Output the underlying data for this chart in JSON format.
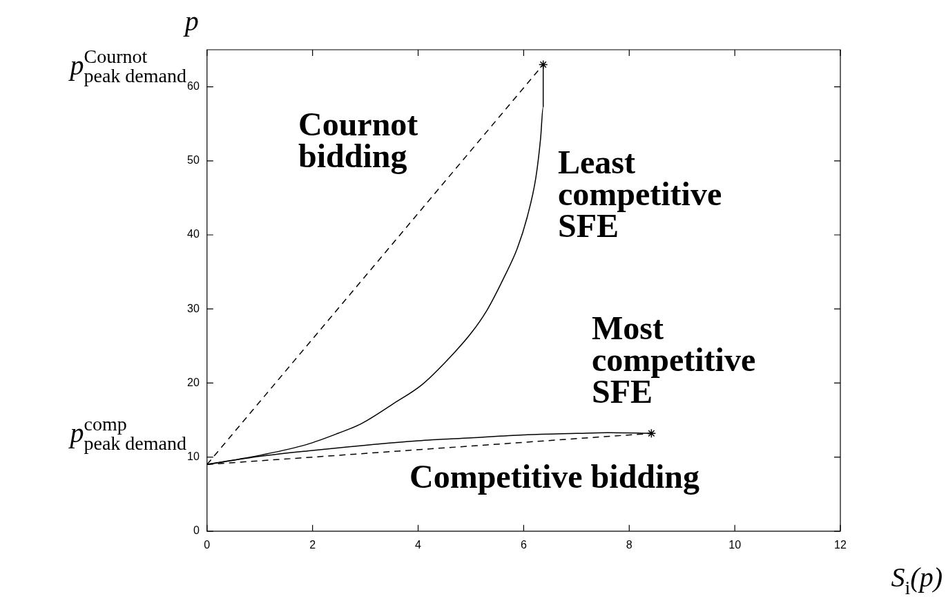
{
  "chart_data": {
    "type": "line",
    "xlabel": "S$_{i}$(p)",
    "ylabel": "p",
    "xlim": [
      0,
      12
    ],
    "ylim": [
      0,
      65
    ],
    "xticks": [
      0,
      2,
      4,
      6,
      8,
      10,
      12
    ],
    "yticks": [
      0,
      10,
      20,
      30,
      40,
      50,
      60
    ],
    "grid": false,
    "legend": false,
    "series": [
      {
        "color": "#000000",
        "line_style": "solid",
        "marker": "none",
        "x": [
          0,
          1.04,
          1.89,
          2.48,
          2.92,
          3.55,
          4.06,
          4.5,
          5.0,
          5.31,
          5.63,
          5.88,
          6.07,
          6.23,
          6.32,
          6.37,
          6.37
        ],
        "values": [
          9,
          10.3,
          11.7,
          13.2,
          14.5,
          17.3,
          19.7,
          22.7,
          26.7,
          29.9,
          34.3,
          38.2,
          42.5,
          47.7,
          53,
          57.3,
          63
        ]
      },
      {
        "color": "#000000",
        "line_style": "solid",
        "marker": "none",
        "x": [
          0,
          1,
          2,
          3,
          4,
          5,
          6,
          7,
          7.6,
          8.42
        ],
        "values": [
          9,
          10.1,
          10.9,
          11.6,
          12.2,
          12.6,
          13.0,
          13.2,
          13.3,
          13.2
        ]
      },
      {
        "color": "#000000",
        "line_style": "dashed",
        "marker": "none",
        "x": [
          0,
          6.37
        ],
        "values": [
          9,
          63
        ]
      },
      {
        "color": "#000000",
        "line_style": "dashed",
        "marker": "none",
        "x": [
          0,
          8.42
        ],
        "values": [
          9,
          13.2
        ]
      },
      {
        "type": "scatter",
        "color": "#000000",
        "marker": "cross",
        "x": [
          6.37,
          8.42
        ],
        "values": [
          63,
          13.2
        ]
      }
    ],
    "annotations": [
      "p$^{Cournot}$$_{peak demand}$",
      "p$^{comp}$$_{peak demand}$",
      "Cournot\nbidding",
      "Least\ncompetitive\nSFE",
      "Most\ncompetitive\nSFE",
      "Competitive bidding"
    ]
  }
}
